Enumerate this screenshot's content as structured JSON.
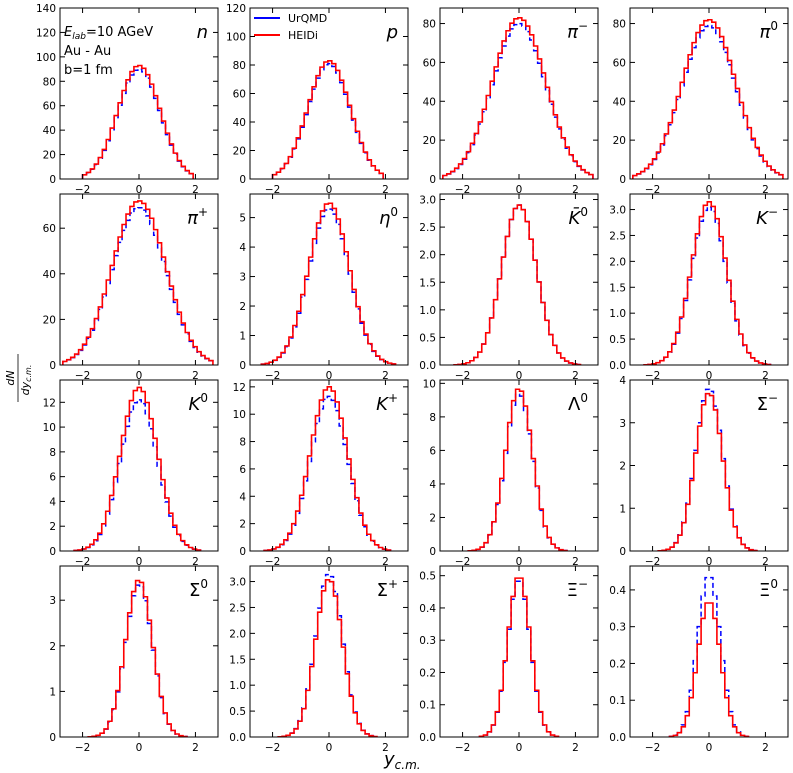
{
  "annotation": {
    "energy_label": "E",
    "energy_sub": "lab",
    "energy_value": "=10 AGeV",
    "system": "Au - Au",
    "impact": "b=1 fm"
  },
  "legend": [
    {
      "name": "UrQMD",
      "color": "#0000ff"
    },
    {
      "name": "HEIDi",
      "color": "#ff0000"
    }
  ],
  "axes": {
    "xlabel_main": "y",
    "xlabel_sub": "c.m.",
    "ylabel_num": "dN",
    "ylabel_den": "dy",
    "ylabel_den_sub": "c.m."
  },
  "colors": {
    "urqmd": "#0000ff",
    "heidi": "#ff0000"
  },
  "chart_data": [
    {
      "type": "line",
      "label": "n",
      "title": "n",
      "xlim": [
        -2.8,
        2.8
      ],
      "ylim": [
        0,
        140
      ],
      "yticks": [
        0,
        20,
        40,
        60,
        80,
        100,
        120,
        140
      ],
      "xticks": [
        -2,
        0,
        2
      ],
      "ylabels": [
        "0",
        "20",
        "40",
        "60",
        "80",
        "100",
        "120",
        "140"
      ],
      "sigma": 0.75,
      "support": 2.0,
      "series": [
        {
          "name": "UrQMD",
          "peak": 90
        },
        {
          "name": "HEIDi",
          "peak": 93
        }
      ]
    },
    {
      "type": "line",
      "label": "p",
      "title": "p",
      "xlim": [
        -2.8,
        2.8
      ],
      "ylim": [
        0,
        120
      ],
      "yticks": [
        0,
        20,
        40,
        60,
        80,
        100,
        120
      ],
      "xticks": [
        -2,
        0,
        2
      ],
      "ylabels": [
        "0",
        "20",
        "40",
        "60",
        "80",
        "100",
        "120"
      ],
      "sigma": 0.75,
      "support": 2.0,
      "series": [
        {
          "name": "UrQMD",
          "peak": 81
        },
        {
          "name": "HEIDi",
          "peak": 83
        }
      ]
    },
    {
      "type": "line",
      "label": "π⁻",
      "title": "π",
      "sup": "−",
      "xlim": [
        -2.8,
        2.8
      ],
      "ylim": [
        0,
        88
      ],
      "yticks": [
        0,
        20,
        40,
        60,
        80
      ],
      "xticks": [
        -2,
        0,
        2
      ],
      "ylabels": [
        "0",
        "20",
        "40",
        "60",
        "80"
      ],
      "sigma": 0.95,
      "support": 2.7,
      "series": [
        {
          "name": "UrQMD",
          "peak": 80
        },
        {
          "name": "HEIDi",
          "peak": 83
        }
      ]
    },
    {
      "type": "line",
      "label": "π⁰",
      "title": "π",
      "sup": "0",
      "xlim": [
        -2.8,
        2.8
      ],
      "ylim": [
        0,
        88
      ],
      "yticks": [
        0,
        20,
        40,
        60,
        80
      ],
      "xticks": [
        -2,
        0,
        2
      ],
      "ylabels": [
        "0",
        "20",
        "40",
        "60",
        "80"
      ],
      "sigma": 0.95,
      "support": 2.7,
      "series": [
        {
          "name": "UrQMD",
          "peak": 79
        },
        {
          "name": "HEIDi",
          "peak": 82
        }
      ]
    },
    {
      "type": "line",
      "label": "π⁺",
      "title": "π",
      "sup": "+",
      "xlim": [
        -2.8,
        2.8
      ],
      "ylim": [
        0,
        75
      ],
      "yticks": [
        0,
        20,
        40,
        60
      ],
      "xticks": [
        -2,
        0,
        2
      ],
      "ylabels": [
        "0",
        "20",
        "40",
        "60"
      ],
      "sigma": 0.95,
      "support": 2.7,
      "series": [
        {
          "name": "UrQMD",
          "peak": 69
        },
        {
          "name": "HEIDi",
          "peak": 72
        }
      ]
    },
    {
      "type": "line",
      "label": "η⁰",
      "title": "η",
      "sup": "0",
      "xlim": [
        -2.8,
        2.8
      ],
      "ylim": [
        0,
        5.8
      ],
      "yticks": [
        0,
        1,
        2,
        3,
        4,
        5
      ],
      "xticks": [
        -2,
        0,
        2
      ],
      "ylabels": [
        "0",
        "1",
        "2",
        "3",
        "4",
        "5"
      ],
      "sigma": 0.72,
      "support": 2.4,
      "series": [
        {
          "name": "UrQMD",
          "peak": 5.3
        },
        {
          "name": "HEIDi",
          "peak": 5.5
        }
      ]
    },
    {
      "type": "line",
      "label": "K̄⁰",
      "title": "K̄",
      "sup": "0",
      "xlim": [
        -2.8,
        2.8
      ],
      "ylim": [
        0,
        3.1
      ],
      "yticks": [
        0,
        0.5,
        1.0,
        1.5,
        2.0,
        2.5,
        3.0
      ],
      "xticks": [
        -2,
        0,
        2
      ],
      "ylabels": [
        "0.0",
        "0.5",
        "1.0",
        "1.5",
        "2.0",
        "2.5",
        "3.0"
      ],
      "sigma": 0.62,
      "support": 2.3,
      "series": [
        {
          "name": "UrQMD",
          "peak": 2.9
        },
        {
          "name": "HEIDi",
          "peak": 2.9
        }
      ]
    },
    {
      "type": "line",
      "label": "K⁻",
      "title": "K",
      "sup": "−",
      "xlim": [
        -2.8,
        2.8
      ],
      "ylim": [
        0,
        3.3
      ],
      "yticks": [
        0,
        0.5,
        1.0,
        1.5,
        2.0,
        2.5,
        3.0
      ],
      "xticks": [
        -2,
        0,
        2
      ],
      "ylabels": [
        "0.0",
        "0.5",
        "1.0",
        "1.5",
        "2.0",
        "2.5",
        "3.0"
      ],
      "sigma": 0.62,
      "support": 2.3,
      "series": [
        {
          "name": "UrQMD",
          "peak": 3.05
        },
        {
          "name": "HEIDi",
          "peak": 3.15
        }
      ]
    },
    {
      "type": "line",
      "label": "K⁰",
      "title": "K",
      "sup": "0",
      "xlim": [
        -2.8,
        2.8
      ],
      "ylim": [
        0,
        13.8
      ],
      "yticks": [
        0,
        2,
        4,
        6,
        8,
        10,
        12
      ],
      "xticks": [
        -2,
        0,
        2
      ],
      "ylabels": [
        "0",
        "2",
        "4",
        "6",
        "8",
        "10",
        "12"
      ],
      "sigma": 0.66,
      "support": 2.3,
      "series": [
        {
          "name": "UrQMD",
          "peak": 12.2
        },
        {
          "name": "HEIDi",
          "peak": 13.2
        }
      ]
    },
    {
      "type": "line",
      "label": "K⁺",
      "title": "K",
      "sup": "+",
      "xlim": [
        -2.8,
        2.8
      ],
      "ylim": [
        0,
        12.5
      ],
      "yticks": [
        0,
        2,
        4,
        6,
        8,
        10,
        12
      ],
      "xticks": [
        -2,
        0,
        2
      ],
      "ylabels": [
        "0",
        "2",
        "4",
        "6",
        "8",
        "10",
        "12"
      ],
      "sigma": 0.66,
      "support": 2.3,
      "series": [
        {
          "name": "UrQMD",
          "peak": 11.3
        },
        {
          "name": "HEIDi",
          "peak": 12.0
        }
      ]
    },
    {
      "type": "line",
      "label": "Λ⁰",
      "title": "Λ",
      "sup": "0",
      "xlim": [
        -2.8,
        2.8
      ],
      "ylim": [
        0,
        10.2
      ],
      "yticks": [
        0,
        2,
        4,
        6,
        8,
        10
      ],
      "xticks": [
        -2,
        0,
        2
      ],
      "ylabels": [
        "0",
        "2",
        "4",
        "6",
        "8",
        "10"
      ],
      "sigma": 0.48,
      "support": 1.8,
      "series": [
        {
          "name": "UrQMD",
          "peak": 9.4
        },
        {
          "name": "HEIDi",
          "peak": 9.7
        }
      ]
    },
    {
      "type": "line",
      "label": "Σ⁻",
      "title": "Σ",
      "sup": "−",
      "xlim": [
        -2.8,
        2.8
      ],
      "ylim": [
        0,
        4.0
      ],
      "yticks": [
        0,
        1,
        2,
        3,
        4
      ],
      "xticks": [
        -2,
        0,
        2
      ],
      "ylabels": [
        "0",
        "1",
        "2",
        "3",
        "4"
      ],
      "sigma": 0.48,
      "support": 1.8,
      "series": [
        {
          "name": "UrQMD",
          "peak": 3.8
        },
        {
          "name": "HEIDi",
          "peak": 3.7
        }
      ]
    },
    {
      "type": "line",
      "label": "Σ⁰",
      "title": "Σ",
      "sup": "0",
      "xlim": [
        -2.8,
        2.8
      ],
      "ylim": [
        0,
        3.75
      ],
      "yticks": [
        0,
        1,
        2,
        3
      ],
      "xticks": [
        -2,
        0,
        2
      ],
      "ylabels": [
        "0",
        "1",
        "2",
        "3"
      ],
      "sigma": 0.48,
      "support": 1.8,
      "series": [
        {
          "name": "UrQMD",
          "peak": 3.35
        },
        {
          "name": "HEIDi",
          "peak": 3.45
        }
      ]
    },
    {
      "type": "line",
      "label": "Σ⁺",
      "title": "Σ",
      "sup": "+",
      "xlim": [
        -2.8,
        2.8
      ],
      "ylim": [
        0,
        3.3
      ],
      "yticks": [
        0,
        0.5,
        1.0,
        1.5,
        2.0,
        2.5,
        3.0
      ],
      "xticks": [
        -2,
        0,
        2
      ],
      "ylabels": [
        "0.0",
        "0.5",
        "1.0",
        "1.5",
        "2.0",
        "2.5",
        "3.0"
      ],
      "sigma": 0.48,
      "support": 1.8,
      "series": [
        {
          "name": "UrQMD",
          "peak": 3.15
        },
        {
          "name": "HEIDi",
          "peak": 3.05
        }
      ]
    },
    {
      "type": "line",
      "label": "Ξ⁻",
      "title": "Ξ",
      "sup": "−",
      "xlim": [
        -2.8,
        2.8
      ],
      "ylim": [
        0,
        0.53
      ],
      "yticks": [
        0,
        0.1,
        0.2,
        0.3,
        0.4,
        0.5
      ],
      "xticks": [
        -2,
        0,
        2
      ],
      "ylabels": [
        "0.0",
        "0.1",
        "0.2",
        "0.3",
        "0.4",
        "0.5"
      ],
      "sigma": 0.4,
      "support": 1.4,
      "series": [
        {
          "name": "UrQMD",
          "peak": 0.49
        },
        {
          "name": "HEIDi",
          "peak": 0.5
        }
      ]
    },
    {
      "type": "line",
      "label": "Ξ⁰",
      "title": "Ξ",
      "sup": "0",
      "xlim": [
        -2.8,
        2.8
      ],
      "ylim": [
        0,
        0.465
      ],
      "yticks": [
        0,
        0.1,
        0.2,
        0.3,
        0.4
      ],
      "xticks": [
        -2,
        0,
        2
      ],
      "ylabels": [
        "0.0",
        "0.1",
        "0.2",
        "0.3",
        "0.4"
      ],
      "sigma": 0.4,
      "support": 1.4,
      "series": [
        {
          "name": "UrQMD",
          "peak": 0.44
        },
        {
          "name": "HEIDi",
          "peak": 0.37
        }
      ]
    }
  ]
}
